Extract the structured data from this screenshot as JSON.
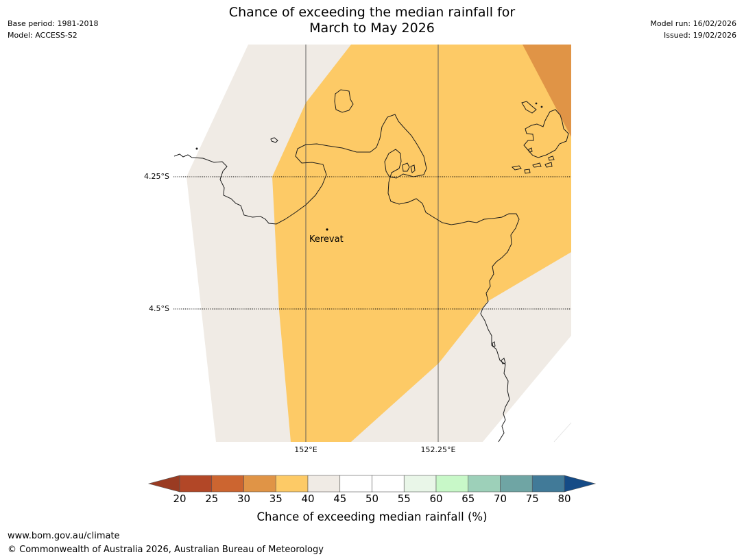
{
  "title": {
    "line1": "Chance of exceeding the median rainfall for",
    "line2": "March to May 2026"
  },
  "meta_left": {
    "base_period": "Base period: 1981-2018",
    "model": "Model: ACCESS-S2"
  },
  "meta_right": {
    "model_run": "Model run: 16/02/2026",
    "issued": "Issued: 19/02/2026"
  },
  "map": {
    "lat_labels": [
      "4.25°S",
      "4.5°S"
    ],
    "lon_labels": [
      "152°E",
      "152.25°E"
    ],
    "places": [
      {
        "name": "Kerevat"
      }
    ],
    "category_colors": {
      "35-40": "#fdca66",
      "40-45": "#f0ebe5",
      "30-35": "#e09446",
      "background": "#ffffff"
    }
  },
  "colorbar": {
    "title": "Chance of exceeding median rainfall (%)",
    "ticks": [
      "20",
      "25",
      "30",
      "35",
      "40",
      "45",
      "50",
      "55",
      "60",
      "65",
      "70",
      "75",
      "80"
    ],
    "below_color": "#9a3b22",
    "above_color": "#154b86",
    "colors": [
      "#b24727",
      "#cc6530",
      "#e09446",
      "#fdca66",
      "#f0ebe5",
      "#ffffff",
      "#ffffff",
      "#e9f6e8",
      "#c8f8c8",
      "#9dd0b9",
      "#6fa5a4",
      "#417a98"
    ]
  },
  "footer": {
    "url": "www.bom.gov.au/climate",
    "copyright": "© Commonwealth of Australia 2026, Australian Bureau of Meteorology"
  }
}
